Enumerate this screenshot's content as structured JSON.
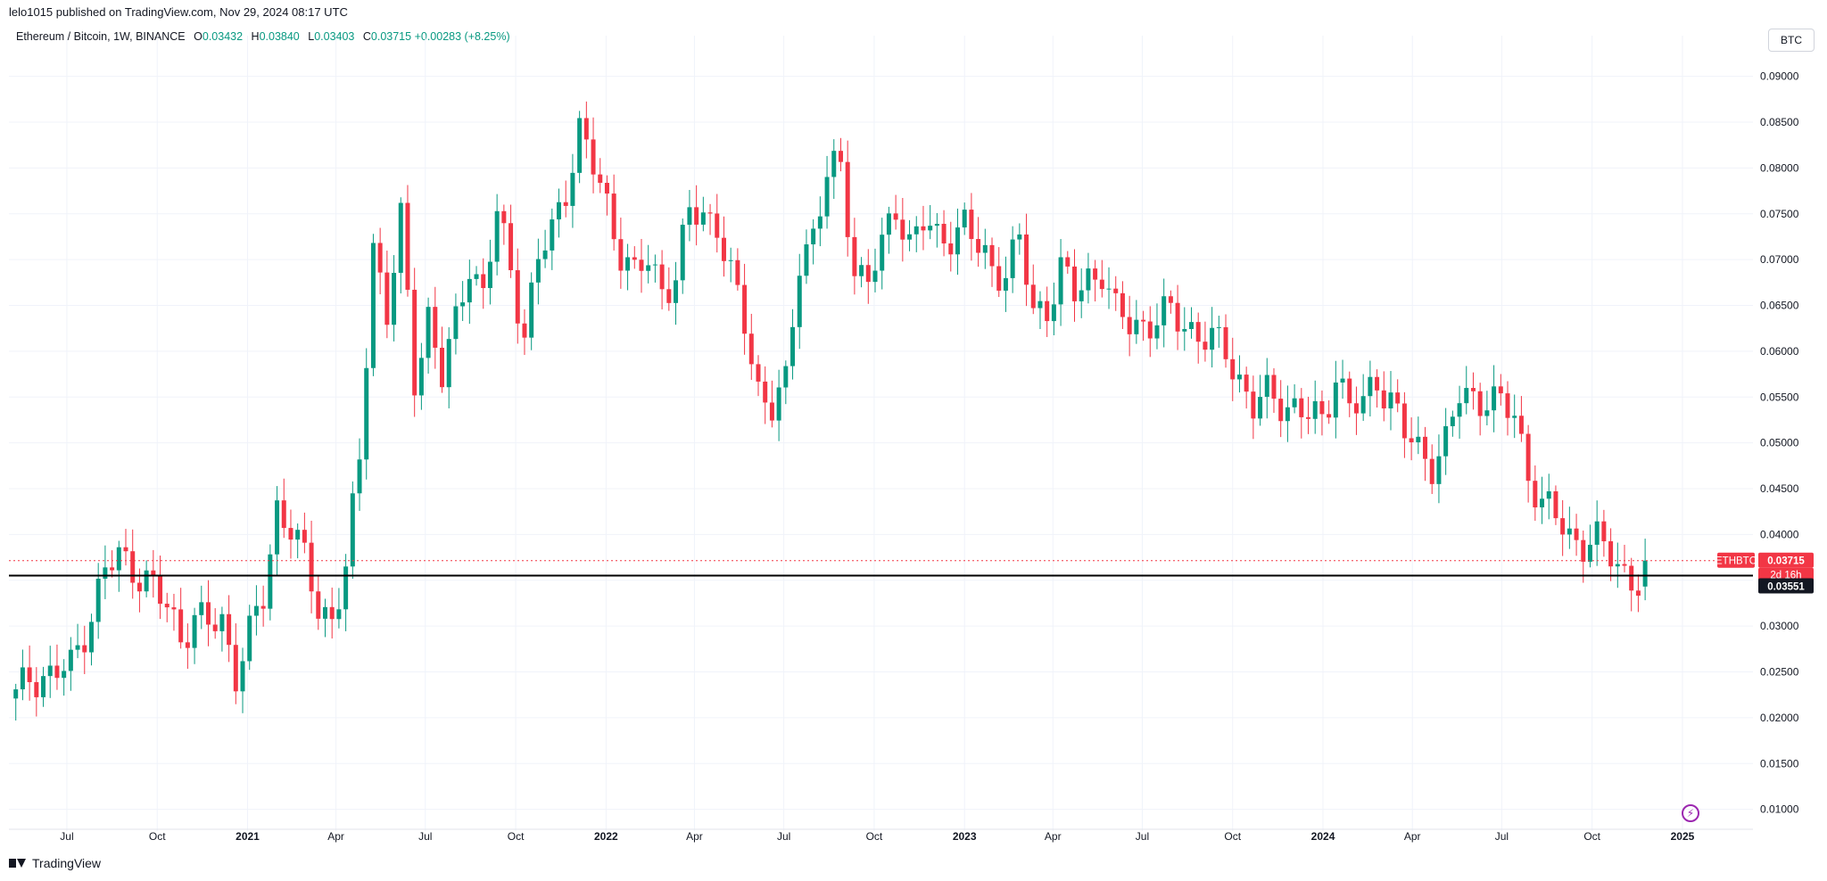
{
  "header": {
    "published": "lelo1015 published on TradingView.com, Nov 29, 2024 08:17 UTC"
  },
  "legend": {
    "symbol": "Ethereum / Bitcoin, 1W, BINANCE",
    "open_label": "O",
    "open": "0.03432",
    "high_label": "H",
    "high": "0.03840",
    "low_label": "L",
    "low": "0.03403",
    "close_label": "C",
    "close": "0.03715",
    "change": "+0.00283 (+8.25%)"
  },
  "currency_button": "BTC",
  "price_labels": {
    "symbol_tag": "ETHBTC",
    "last_price": "0.03715",
    "countdown": "2d 16h",
    "level": "0.03551"
  },
  "footer": {
    "brand": "TradingView"
  },
  "colors": {
    "up": "#089981",
    "down": "#f23645",
    "level_line": "#000000",
    "grid": "#f0f3fa"
  },
  "icons": {
    "bolt": "lightning-bolt-icon",
    "logo": "tradingview-logo-icon"
  },
  "chart_data": {
    "type": "candlestick",
    "title": "",
    "xlabel": "",
    "ylabel": "",
    "ylim": [
      0.0088,
      0.0925
    ],
    "yticks": [
      "0.01000",
      "0.01500",
      "0.02000",
      "0.02500",
      "0.03000",
      "0.03500",
      "0.04000",
      "0.04500",
      "0.05000",
      "0.05500",
      "0.06000",
      "0.06500",
      "0.07000",
      "0.07500",
      "0.08000",
      "0.08500",
      "0.09000"
    ],
    "xticks": [
      {
        "date": "2020-07-01",
        "label": "Jul"
      },
      {
        "date": "2020-10-01",
        "label": "Oct"
      },
      {
        "date": "2021-01-01",
        "label": "2021"
      },
      {
        "date": "2021-04-01",
        "label": "Apr"
      },
      {
        "date": "2021-07-01",
        "label": "Jul"
      },
      {
        "date": "2021-10-01",
        "label": "Oct"
      },
      {
        "date": "2022-01-01",
        "label": "2022"
      },
      {
        "date": "2022-04-01",
        "label": "Apr"
      },
      {
        "date": "2022-07-01",
        "label": "Jul"
      },
      {
        "date": "2022-10-01",
        "label": "Oct"
      },
      {
        "date": "2023-01-01",
        "label": "2023"
      },
      {
        "date": "2023-04-01",
        "label": "Apr"
      },
      {
        "date": "2023-07-01",
        "label": "Jul"
      },
      {
        "date": "2023-10-01",
        "label": "Oct"
      },
      {
        "date": "2024-01-01",
        "label": "2024"
      },
      {
        "date": "2024-04-01",
        "label": "Apr"
      },
      {
        "date": "2024-07-01",
        "label": "Jul"
      },
      {
        "date": "2024-10-01",
        "label": "Oct"
      },
      {
        "date": "2025-01-01",
        "label": "2025"
      }
    ],
    "horizontal_level": 0.03551,
    "last_price": 0.03715,
    "close_anchors": [
      [
        "2020-05-10",
        0.0222
      ],
      [
        "2020-05-24",
        0.0245
      ],
      [
        "2020-06-14",
        0.0246
      ],
      [
        "2020-07-05",
        0.0255
      ],
      [
        "2020-07-26",
        0.0315
      ],
      [
        "2020-08-09",
        0.036
      ],
      [
        "2020-08-23",
        0.0375
      ],
      [
        "2020-09-06",
        0.0365
      ],
      [
        "2020-09-20",
        0.035
      ],
      [
        "2020-10-11",
        0.032
      ],
      [
        "2020-10-25",
        0.029
      ],
      [
        "2020-11-08",
        0.031
      ],
      [
        "2020-11-22",
        0.03
      ],
      [
        "2020-12-06",
        0.0305
      ],
      [
        "2020-12-20",
        0.025
      ],
      [
        "2021-01-03",
        0.029
      ],
      [
        "2021-01-17",
        0.033
      ],
      [
        "2021-01-31",
        0.043
      ],
      [
        "2021-02-14",
        0.041
      ],
      [
        "2021-02-28",
        0.037
      ],
      [
        "2021-03-14",
        0.032
      ],
      [
        "2021-03-28",
        0.031
      ],
      [
        "2021-04-11",
        0.036
      ],
      [
        "2021-04-25",
        0.048
      ],
      [
        "2021-05-09",
        0.072
      ],
      [
        "2021-05-23",
        0.064
      ],
      [
        "2021-06-06",
        0.074
      ],
      [
        "2021-06-20",
        0.057
      ],
      [
        "2021-07-04",
        0.064
      ],
      [
        "2021-07-18",
        0.057
      ],
      [
        "2021-08-01",
        0.063
      ],
      [
        "2021-08-15",
        0.07
      ],
      [
        "2021-08-29",
        0.066
      ],
      [
        "2021-09-12",
        0.075
      ],
      [
        "2021-09-26",
        0.069
      ],
      [
        "2021-10-10",
        0.062
      ],
      [
        "2021-10-24",
        0.07
      ],
      [
        "2021-11-07",
        0.073
      ],
      [
        "2021-11-21",
        0.078
      ],
      [
        "2021-12-05",
        0.084
      ],
      [
        "2021-12-19",
        0.08
      ],
      [
        "2022-01-02",
        0.076
      ],
      [
        "2022-01-16",
        0.071
      ],
      [
        "2022-01-30",
        0.068
      ],
      [
        "2022-02-13",
        0.07
      ],
      [
        "2022-02-27",
        0.067
      ],
      [
        "2022-03-13",
        0.068
      ],
      [
        "2022-03-27",
        0.075
      ],
      [
        "2022-04-10",
        0.075
      ],
      [
        "2022-04-24",
        0.074
      ],
      [
        "2022-05-08",
        0.068
      ],
      [
        "2022-05-22",
        0.063
      ],
      [
        "2022-06-05",
        0.056
      ],
      [
        "2022-06-19",
        0.054
      ],
      [
        "2022-07-03",
        0.056
      ],
      [
        "2022-07-17",
        0.07
      ],
      [
        "2022-07-31",
        0.073
      ],
      [
        "2022-08-14",
        0.079
      ],
      [
        "2022-08-28",
        0.08
      ],
      [
        "2022-09-11",
        0.069
      ],
      [
        "2022-09-25",
        0.068
      ],
      [
        "2022-10-09",
        0.071
      ],
      [
        "2022-10-23",
        0.076
      ],
      [
        "2022-11-06",
        0.072
      ],
      [
        "2022-11-20",
        0.074
      ],
      [
        "2022-12-04",
        0.072
      ],
      [
        "2022-12-18",
        0.073
      ],
      [
        "2023-01-01",
        0.074
      ],
      [
        "2023-01-15",
        0.071
      ],
      [
        "2023-01-29",
        0.069
      ],
      [
        "2023-02-12",
        0.069
      ],
      [
        "2023-02-26",
        0.072
      ],
      [
        "2023-03-12",
        0.064
      ],
      [
        "2023-03-26",
        0.065
      ],
      [
        "2023-04-09",
        0.069
      ],
      [
        "2023-04-23",
        0.066
      ],
      [
        "2023-05-07",
        0.068
      ],
      [
        "2023-05-21",
        0.069
      ],
      [
        "2023-06-04",
        0.064
      ],
      [
        "2023-06-18",
        0.063
      ],
      [
        "2023-07-02",
        0.063
      ],
      [
        "2023-07-16",
        0.0635
      ],
      [
        "2023-07-30",
        0.064
      ],
      [
        "2023-08-13",
        0.063
      ],
      [
        "2023-08-27",
        0.062
      ],
      [
        "2023-09-10",
        0.061
      ],
      [
        "2023-09-24",
        0.06
      ],
      [
        "2023-10-08",
        0.057
      ],
      [
        "2023-10-22",
        0.054
      ],
      [
        "2023-11-05",
        0.055
      ],
      [
        "2023-11-19",
        0.0545
      ],
      [
        "2023-12-03",
        0.054
      ],
      [
        "2023-12-17",
        0.053
      ],
      [
        "2024-01-01",
        0.052
      ],
      [
        "2024-01-14",
        0.058
      ],
      [
        "2024-01-28",
        0.054
      ],
      [
        "2024-02-11",
        0.054
      ],
      [
        "2024-02-25",
        0.057
      ],
      [
        "2024-03-10",
        0.055
      ],
      [
        "2024-03-24",
        0.051
      ],
      [
        "2024-04-07",
        0.049
      ],
      [
        "2024-04-21",
        0.048
      ],
      [
        "2024-05-05",
        0.05
      ],
      [
        "2024-05-19",
        0.055
      ],
      [
        "2024-06-02",
        0.055
      ],
      [
        "2024-06-16",
        0.055
      ],
      [
        "2024-06-30",
        0.054
      ],
      [
        "2024-07-14",
        0.053
      ],
      [
        "2024-07-28",
        0.047
      ],
      [
        "2024-08-11",
        0.043
      ],
      [
        "2024-08-25",
        0.042
      ],
      [
        "2024-09-08",
        0.04
      ],
      [
        "2024-09-22",
        0.039
      ],
      [
        "2024-10-06",
        0.039
      ],
      [
        "2024-10-20",
        0.038
      ],
      [
        "2024-11-03",
        0.036
      ],
      [
        "2024-11-17",
        0.0343
      ],
      [
        "2024-11-24",
        0.03715
      ]
    ]
  }
}
